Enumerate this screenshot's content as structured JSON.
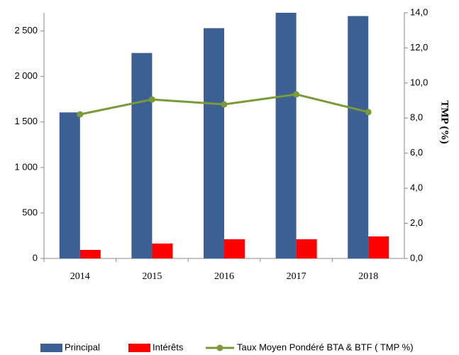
{
  "chart_data": {
    "type": "bar_line",
    "categories": [
      "2014",
      "2015",
      "2016",
      "2017",
      "2018"
    ],
    "series": [
      {
        "name": "Principal",
        "color": "#3c5f94",
        "type": "bar",
        "values": [
          1605,
          2258,
          2531,
          2700,
          2664
        ]
      },
      {
        "name": "Intérêts",
        "color": "#ff0000",
        "type": "bar",
        "values": [
          94,
          164,
          211,
          211,
          242
        ]
      },
      {
        "name": "Taux Moyen Pondéré BTA & BTF ( TMP %)",
        "color": "#7a9a3a",
        "type": "line",
        "axis": "y2",
        "values": [
          8.21,
          9.06,
          8.78,
          9.35,
          8.34
        ]
      }
    ],
    "ylim": [
      0,
      2700
    ],
    "yticks": [
      0,
      500,
      {
        "value": 1000,
        "label": "1 000"
      },
      {
        "value": 1500,
        "label": "1 500"
      },
      {
        "value": 2000,
        "label": "2 000"
      },
      {
        "value": 2500,
        "label": "2 500"
      }
    ],
    "y2lim": [
      0,
      14
    ],
    "y2ticks": [
      {
        "value": 0,
        "label": "0,0"
      },
      {
        "value": 2,
        "label": "2,0"
      },
      {
        "value": 4,
        "label": "4,0"
      },
      {
        "value": 6,
        "label": "6,0"
      },
      {
        "value": 8,
        "label": "8,0"
      },
      {
        "value": 10,
        "label": "10,0"
      },
      {
        "value": 12,
        "label": "12,0"
      },
      {
        "value": 14,
        "label": "14,0"
      }
    ],
    "y2label": "TMP  (%)",
    "grid": false,
    "legend": "bottom"
  }
}
